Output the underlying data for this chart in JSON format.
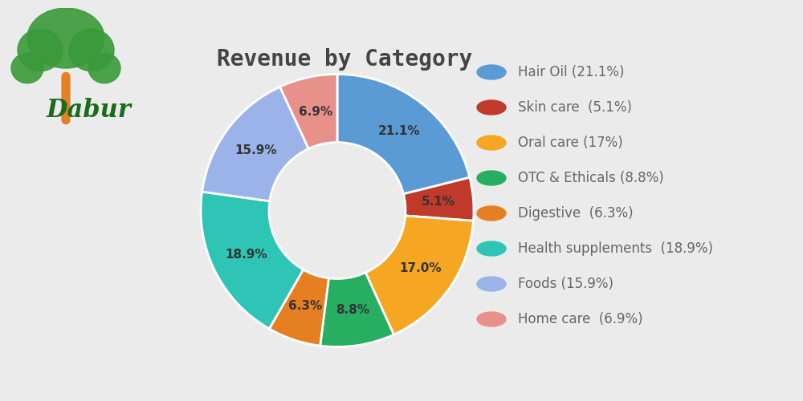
{
  "title": "Revenue by Category",
  "categories": [
    "Hair Oil",
    "Skin care",
    "Oral care",
    "OTC & Ethicals",
    "Digestive",
    "Health supplements",
    "Foods",
    "Home care"
  ],
  "values": [
    21.1,
    5.1,
    17.0,
    8.8,
    6.3,
    18.9,
    15.9,
    6.9
  ],
  "colors": [
    "#5B9BD5",
    "#C0392B",
    "#F5A623",
    "#27AE60",
    "#E67E22",
    "#2EC4B6",
    "#9BB3E8",
    "#E8908A"
  ],
  "legend_labels": [
    "Hair Oil (21.1%)",
    "Skin care  (5.1%)",
    "Oral care (17%)",
    "OTC & Ethicals (8.8%)",
    "Digestive  (6.3%)",
    "Health supplements  (18.9%)",
    "Foods (15.9%)",
    "Home care  (6.9%)"
  ],
  "background_color": "#EBEBEB",
  "title_fontsize": 20,
  "label_fontsize": 11,
  "legend_fontsize": 12,
  "title_color": "#444444",
  "label_color": "#333333",
  "legend_text_color": "#666666"
}
